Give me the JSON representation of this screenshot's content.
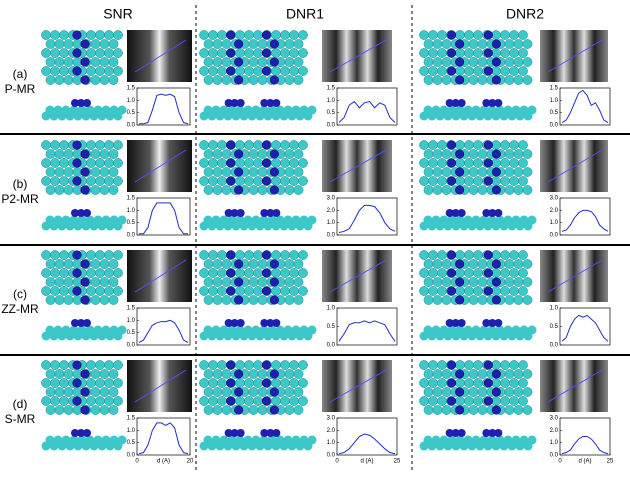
{
  "columns": [
    "SNR",
    "DNR1",
    "DNR2"
  ],
  "rows": [
    {
      "label": "(a)",
      "name": "P-MR",
      "profiles": [
        {
          "yticks": [
            {
              "value": 0,
              "label": "0.0"
            },
            {
              "value": 0.5,
              "label": "0.5"
            },
            {
              "value": 1,
              "label": "1.0"
            },
            {
              "value": 1.5,
              "label": "1.5"
            }
          ],
          "values": [
            0.05,
            0.05,
            0.1,
            0.6,
            1.2,
            1.25,
            1.2,
            1.25,
            1.15,
            0.5,
            0.1,
            0.05
          ]
        },
        {
          "yticks": [
            {
              "value": 0,
              "label": "0.0"
            },
            {
              "value": 0.5,
              "label": "0.5"
            },
            {
              "value": 1,
              "label": "1.0"
            },
            {
              "value": 1.5,
              "label": "1.5"
            }
          ],
          "values": [
            0.1,
            0.3,
            0.8,
            0.95,
            0.7,
            0.9,
            0.95,
            0.7,
            0.9,
            0.8,
            0.3,
            0.1
          ]
        },
        {
          "yticks": [
            {
              "value": 0,
              "label": "0.0"
            },
            {
              "value": 0.5,
              "label": "0.5"
            },
            {
              "value": 1,
              "label": "1.0"
            },
            {
              "value": 1.5,
              "label": "1.5"
            }
          ],
          "values": [
            0.1,
            0.2,
            0.5,
            0.9,
            1.3,
            1.4,
            1.2,
            0.8,
            0.9,
            0.6,
            0.2,
            0.1
          ]
        }
      ]
    },
    {
      "label": "(b)",
      "name": "P2-MR",
      "profiles": [
        {
          "yticks": [
            {
              "value": 0,
              "label": "0.0"
            },
            {
              "value": 0.5,
              "label": "0.5"
            },
            {
              "value": 1,
              "label": "1.0"
            },
            {
              "value": 1.5,
              "label": "1.5"
            }
          ],
          "values": [
            0.05,
            0.05,
            0.3,
            1.0,
            1.3,
            1.3,
            1.3,
            1.3,
            1.0,
            0.3,
            0.05,
            0.05
          ]
        },
        {
          "yticks": [
            {
              "value": 0,
              "label": "0.0"
            },
            {
              "value": 1,
              "label": "1.0"
            },
            {
              "value": 2,
              "label": "2.0"
            },
            {
              "value": 3,
              "label": "3.0"
            }
          ],
          "values": [
            0.2,
            0.3,
            0.5,
            1.2,
            2.0,
            2.4,
            2.4,
            2.3,
            1.8,
            1.0,
            0.5,
            0.3
          ]
        },
        {
          "yticks": [
            {
              "value": 0,
              "label": "0.0"
            },
            {
              "value": 1,
              "label": "1.0"
            },
            {
              "value": 2,
              "label": "2.0"
            },
            {
              "value": 3,
              "label": "3.0"
            }
          ],
          "values": [
            0.3,
            0.4,
            0.8,
            1.4,
            1.8,
            2.0,
            2.0,
            1.9,
            1.5,
            0.8,
            0.5,
            0.3
          ]
        }
      ]
    },
    {
      "label": "(c)",
      "name": "ZZ-MR",
      "profiles": [
        {
          "yticks": [
            {
              "value": 0,
              "label": "0.0"
            },
            {
              "value": 0.5,
              "label": "0.5"
            },
            {
              "value": 1,
              "label": "1.0"
            },
            {
              "value": 1.5,
              "label": "1.5"
            }
          ],
          "values": [
            0.1,
            0.2,
            0.5,
            0.8,
            0.9,
            0.95,
            0.95,
            1.0,
            0.9,
            0.6,
            0.2,
            0.1
          ]
        },
        {
          "yticks": [
            {
              "value": 0,
              "label": "0.0"
            },
            {
              "value": 0.5,
              "label": "0.5"
            },
            {
              "value": 1,
              "label": "1.0"
            }
          ],
          "values": [
            0.1,
            0.3,
            0.55,
            0.6,
            0.6,
            0.65,
            0.6,
            0.65,
            0.6,
            0.55,
            0.3,
            0.1
          ]
        },
        {
          "yticks": [
            {
              "value": 0,
              "label": "0.0"
            },
            {
              "value": 0.5,
              "label": "0.5"
            },
            {
              "value": 1,
              "label": "1.0"
            }
          ],
          "values": [
            0.1,
            0.2,
            0.5,
            0.7,
            0.8,
            0.75,
            0.8,
            0.7,
            0.6,
            0.4,
            0.2,
            0.1
          ]
        }
      ]
    },
    {
      "label": "(d)",
      "name": "S-MR",
      "profiles": [
        {
          "yticks": [
            {
              "value": 0,
              "label": "0.0"
            },
            {
              "value": 0.5,
              "label": "0.5"
            },
            {
              "value": 1,
              "label": "1.0"
            },
            {
              "value": 1.5,
              "label": "1.5"
            }
          ],
          "values": [
            0.05,
            0.1,
            0.4,
            1.0,
            1.3,
            1.3,
            1.2,
            1.3,
            1.1,
            0.4,
            0.1,
            0.05
          ]
        },
        {
          "yticks": [
            {
              "value": 0,
              "label": "0.0"
            },
            {
              "value": 1,
              "label": "1.0"
            },
            {
              "value": 2,
              "label": "2.0"
            },
            {
              "value": 3,
              "label": "3.0"
            }
          ],
          "values": [
            0.1,
            0.2,
            0.5,
            1.0,
            1.5,
            1.7,
            1.6,
            1.3,
            0.9,
            0.5,
            0.2,
            0.1
          ]
        },
        {
          "yticks": [
            {
              "value": 0,
              "label": "0.0"
            },
            {
              "value": 1,
              "label": "1.0"
            },
            {
              "value": 2,
              "label": "2.0"
            },
            {
              "value": 3,
              "label": "3.0"
            }
          ],
          "values": [
            0.1,
            0.2,
            0.4,
            0.9,
            1.3,
            1.5,
            1.5,
            1.3,
            0.9,
            0.4,
            0.2,
            0.1
          ]
        }
      ]
    }
  ],
  "x_axes": [
    {
      "ticks": [
        0,
        20
      ],
      "label": "d (A)"
    },
    {
      "ticks": [
        0,
        25
      ],
      "label": "d (A)"
    },
    {
      "ticks": [
        0,
        25
      ],
      "label": "d (A)"
    }
  ]
}
